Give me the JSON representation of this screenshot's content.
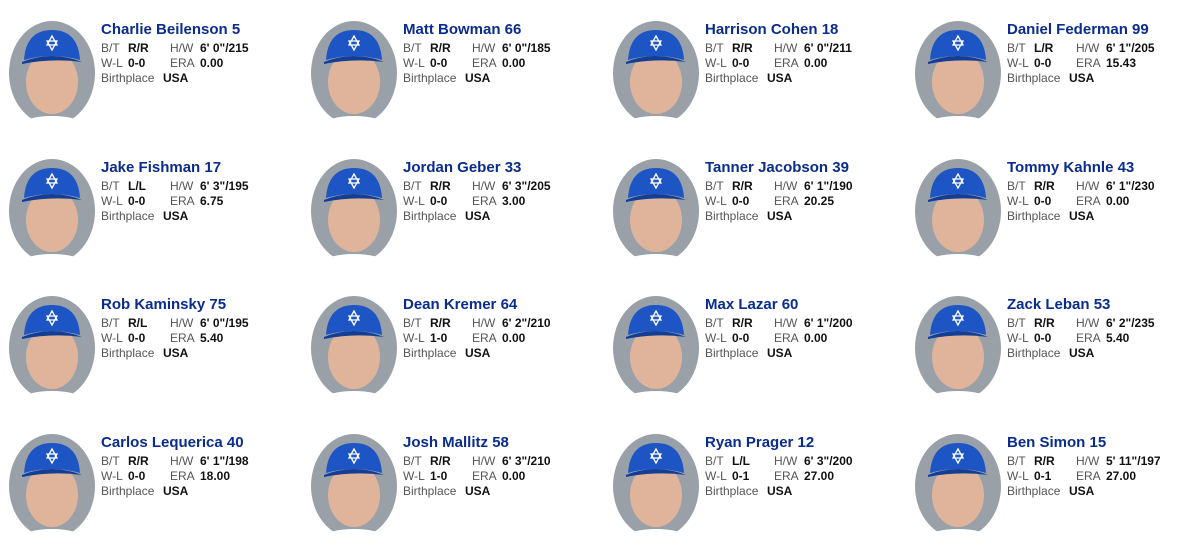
{
  "labels": {
    "bt": "B/T",
    "hw": "H/W",
    "wl": "W-L",
    "era": "ERA",
    "birthplace": "Birthplace"
  },
  "players": [
    {
      "name": "Charlie Beilenson",
      "number": 5,
      "bt": "R/R",
      "hw": "6' 0\"/215",
      "wl": "0-0",
      "era": "0.00",
      "birthplace": "USA"
    },
    {
      "name": "Matt Bowman",
      "number": 66,
      "bt": "R/R",
      "hw": "6' 0\"/185",
      "wl": "0-0",
      "era": "0.00",
      "birthplace": "USA"
    },
    {
      "name": "Harrison Cohen",
      "number": 18,
      "bt": "R/R",
      "hw": "6' 0\"/211",
      "wl": "0-0",
      "era": "0.00",
      "birthplace": "USA"
    },
    {
      "name": "Daniel Federman",
      "number": 99,
      "bt": "L/R",
      "hw": "6' 1\"/205",
      "wl": "0-0",
      "era": "15.43",
      "birthplace": "USA"
    },
    {
      "name": "Jake Fishman",
      "number": 17,
      "bt": "L/L",
      "hw": "6' 3\"/195",
      "wl": "0-0",
      "era": "6.75",
      "birthplace": "USA"
    },
    {
      "name": "Jordan Geber",
      "number": 33,
      "bt": "R/R",
      "hw": "6' 3\"/205",
      "wl": "0-0",
      "era": "3.00",
      "birthplace": "USA"
    },
    {
      "name": "Tanner Jacobson",
      "number": 39,
      "bt": "R/R",
      "hw": "6' 1\"/190",
      "wl": "0-0",
      "era": "20.25",
      "birthplace": "USA"
    },
    {
      "name": "Tommy Kahnle",
      "number": 43,
      "bt": "R/R",
      "hw": "6' 1\"/230",
      "wl": "0-0",
      "era": "0.00",
      "birthplace": "USA"
    },
    {
      "name": "Rob Kaminsky",
      "number": 75,
      "bt": "R/L",
      "hw": "6' 0\"/195",
      "wl": "0-0",
      "era": "5.40",
      "birthplace": "USA"
    },
    {
      "name": "Dean Kremer",
      "number": 64,
      "bt": "R/R",
      "hw": "6' 2\"/210",
      "wl": "1-0",
      "era": "0.00",
      "birthplace": "USA"
    },
    {
      "name": "Max Lazar",
      "number": 60,
      "bt": "R/R",
      "hw": "6' 1\"/200",
      "wl": "0-0",
      "era": "0.00",
      "birthplace": "USA"
    },
    {
      "name": "Zack Leban",
      "number": 53,
      "bt": "R/R",
      "hw": "6' 2\"/235",
      "wl": "0-0",
      "era": "5.40",
      "birthplace": "USA"
    },
    {
      "name": "Carlos Lequerica",
      "number": 40,
      "bt": "R/R",
      "hw": "6' 1\"/198",
      "wl": "0-0",
      "era": "18.00",
      "birthplace": "USA"
    },
    {
      "name": "Josh Mallitz",
      "number": 58,
      "bt": "R/R",
      "hw": "6' 3\"/210",
      "wl": "1-0",
      "era": "0.00",
      "birthplace": "USA"
    },
    {
      "name": "Ryan Prager",
      "number": 12,
      "bt": "L/L",
      "hw": "6' 3\"/200",
      "wl": "0-1",
      "era": "27.00",
      "birthplace": "USA"
    },
    {
      "name": "Ben Simon",
      "number": 15,
      "bt": "R/R",
      "hw": "5' 11\"/197",
      "wl": "0-1",
      "era": "27.00",
      "birthplace": "USA"
    }
  ]
}
